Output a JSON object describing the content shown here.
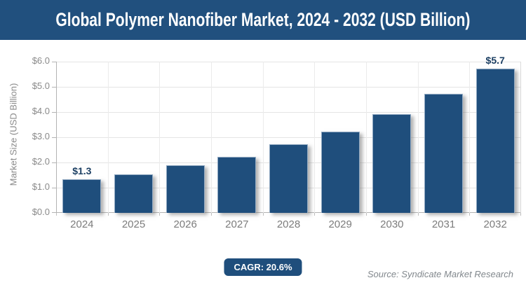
{
  "header": {
    "title": "Global Polymer Nanofiber Market, 2024 - 2032 (USD Billion)"
  },
  "chart_data": {
    "type": "bar",
    "title": "Global Polymer Nanofiber Market, 2024 - 2032 (USD Billion)",
    "categories": [
      "2024",
      "2025",
      "2026",
      "2027",
      "2028",
      "2029",
      "2030",
      "2031",
      "2032"
    ],
    "values": [
      1.3,
      1.5,
      1.85,
      2.2,
      2.7,
      3.2,
      3.9,
      4.7,
      5.7
    ],
    "point_labels": [
      "$1.3",
      "",
      "",
      "",
      "",
      "",
      "",
      "",
      "$5.7"
    ],
    "xlabel": "",
    "ylabel": "Market Size (USD Billion)",
    "ylim": [
      0,
      6
    ],
    "y_tick_labels": [
      "$0.0",
      "$1.0",
      "$2.0",
      "$3.0",
      "$4.0",
      "$5.0",
      "$6.0"
    ],
    "grid": true,
    "legend": false,
    "bar_color": "#1f4e7c"
  },
  "footer": {
    "cagr_label": "CAGR: 20.6%",
    "source": "Source: Syndicate Market Research"
  },
  "colors": {
    "title_bar_bg": "#21507e",
    "title_text": "#ffffff",
    "bar_fill": "#1f4e7c",
    "bar_edge": "#92aac3",
    "data_label": "#1c3f63",
    "axis_text": "#8a8a8a",
    "gridline": "#e4e4e4",
    "source_text": "#82888d"
  }
}
